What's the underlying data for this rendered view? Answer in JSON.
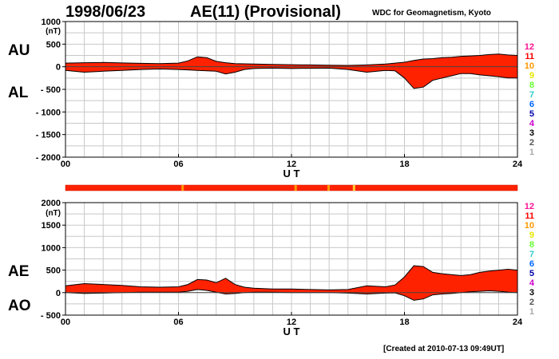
{
  "header": {
    "date": "1998/06/23",
    "title": "AE(11) (Provisional)",
    "source": "WDC for Geomagnetism, Kyoto",
    "created": "[Created at 2010-07-13 09:49UT]"
  },
  "scale_legend": {
    "labels": [
      "12",
      "11",
      "10",
      "9",
      "8",
      "7",
      "6",
      "5",
      "4",
      "3",
      "2",
      "1"
    ],
    "colors": [
      "#ff1493",
      "#ff0000",
      "#ff9900",
      "#e6e600",
      "#66ff33",
      "#33cccc",
      "#0066ff",
      "#0000aa",
      "#cc00cc",
      "#000000",
      "#555555",
      "#aaaaaa"
    ]
  },
  "station_bar": {
    "main_color": "#ff2200",
    "marks": [
      {
        "hour": 6.2,
        "color": "#ff9900"
      },
      {
        "hour": 12.2,
        "color": "#ff9900"
      },
      {
        "hour": 13.95,
        "color": "#ff9900"
      },
      {
        "hour": 15.3,
        "color": "#ffcc33"
      }
    ]
  },
  "chart_data": [
    {
      "type": "area",
      "series": [
        {
          "name": "AU",
          "x": [
            0,
            1,
            2,
            3,
            4,
            5,
            6,
            6.5,
            7,
            7.5,
            8,
            8.5,
            9,
            9.5,
            10,
            11,
            12,
            13,
            14,
            15,
            16,
            17,
            17.5,
            18,
            18.5,
            19,
            19.5,
            20,
            20.5,
            21,
            21.5,
            22,
            22.5,
            23,
            23.5,
            24
          ],
          "values": [
            80,
            90,
            95,
            85,
            75,
            70,
            80,
            130,
            220,
            200,
            120,
            90,
            70,
            65,
            60,
            50,
            45,
            40,
            35,
            30,
            40,
            60,
            80,
            100,
            140,
            170,
            180,
            200,
            210,
            230,
            240,
            250,
            270,
            280,
            260,
            250
          ]
        },
        {
          "name": "AL",
          "x": [
            0,
            1,
            2,
            3,
            4,
            5,
            6,
            6.5,
            7,
            7.5,
            8,
            8.5,
            9,
            9.5,
            10,
            11,
            12,
            13,
            14,
            15,
            16,
            17,
            17.5,
            18,
            18.5,
            19,
            19.5,
            20,
            20.5,
            21,
            21.5,
            22,
            22.5,
            23,
            23.5,
            24
          ],
          "values": [
            -80,
            -120,
            -100,
            -80,
            -60,
            -50,
            -60,
            -70,
            -80,
            -90,
            -100,
            -160,
            -120,
            -60,
            -40,
            -30,
            -40,
            -35,
            -30,
            -60,
            -120,
            -80,
            -90,
            -250,
            -480,
            -450,
            -300,
            -250,
            -200,
            -150,
            -150,
            -180,
            -200,
            -220,
            -250,
            -250
          ]
        }
      ],
      "ylim": [
        -2000,
        1000
      ],
      "xlim": [
        0,
        24
      ],
      "yticks": [
        1000,
        500,
        0,
        -500,
        -1000,
        -1500,
        -2000
      ],
      "ytick_labels": [
        "1000",
        "500",
        "0",
        "- 500",
        "- 1000",
        "- 1500",
        "- 2000"
      ],
      "xticks": [
        0,
        6,
        12,
        18,
        24
      ],
      "xtick_labels": [
        "00",
        "06",
        "12",
        "18",
        "24"
      ],
      "xlabel": "U T",
      "ylabel_unit": "(nT)",
      "side_labels": [
        "AU",
        "AL"
      ],
      "grid": true,
      "fill_color": "#ff2200"
    },
    {
      "type": "area",
      "series": [
        {
          "name": "AE",
          "x": [
            0,
            1,
            2,
            3,
            4,
            5,
            6,
            6.5,
            7,
            7.5,
            8,
            8.5,
            9,
            9.5,
            10,
            11,
            12,
            13,
            14,
            15,
            16,
            17,
            17.5,
            18,
            18.5,
            19,
            19.5,
            20,
            20.5,
            21,
            21.5,
            22,
            22.5,
            23,
            23.5,
            24
          ],
          "values": [
            150,
            200,
            180,
            160,
            130,
            120,
            130,
            180,
            290,
            280,
            220,
            320,
            180,
            120,
            100,
            80,
            80,
            70,
            60,
            70,
            150,
            130,
            170,
            350,
            600,
            580,
            450,
            420,
            400,
            380,
            400,
            450,
            480,
            500,
            520,
            500
          ]
        },
        {
          "name": "AO",
          "x": [
            0,
            1,
            2,
            3,
            4,
            5,
            6,
            6.5,
            7,
            7.5,
            8,
            8.5,
            9,
            9.5,
            10,
            11,
            12,
            13,
            14,
            15,
            16,
            17,
            17.5,
            18,
            18.5,
            19,
            19.5,
            20,
            20.5,
            21,
            21.5,
            22,
            22.5,
            23,
            23.5,
            24
          ],
          "values": [
            0,
            -20,
            -10,
            0,
            10,
            10,
            10,
            30,
            70,
            50,
            10,
            -30,
            -20,
            0,
            10,
            10,
            0,
            0,
            0,
            -10,
            -30,
            -10,
            -5,
            -70,
            -170,
            -140,
            -50,
            -30,
            -20,
            0,
            20,
            30,
            40,
            30,
            10,
            0
          ]
        }
      ],
      "ylim": [
        -500,
        2000
      ],
      "xlim": [
        0,
        24
      ],
      "yticks": [
        2000,
        1500,
        1000,
        500,
        0,
        -500
      ],
      "ytick_labels": [
        "2000",
        "1500",
        "1000",
        "500",
        "0",
        "- 500"
      ],
      "xticks": [
        0,
        6,
        12,
        18,
        24
      ],
      "xtick_labels": [
        "00",
        "06",
        "12",
        "18",
        "24"
      ],
      "xlabel": "U T",
      "ylabel_unit": "(nT)",
      "side_labels": [
        "AE",
        "AO"
      ],
      "grid": true,
      "fill_color": "#ff2200"
    }
  ]
}
